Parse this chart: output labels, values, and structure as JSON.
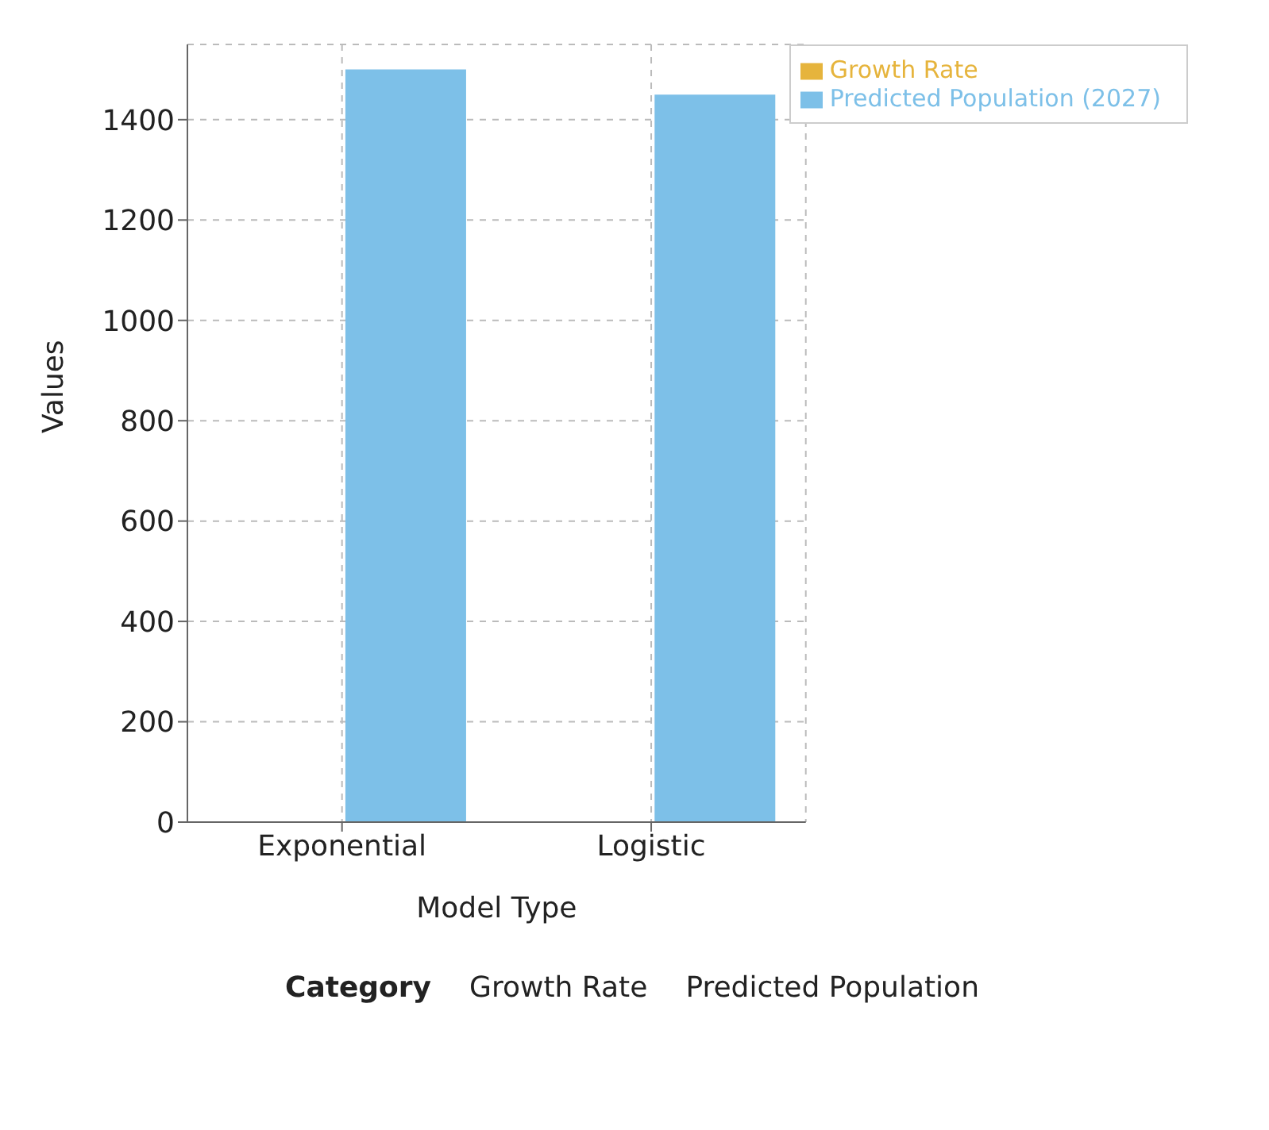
{
  "chart_data": {
    "type": "bar",
    "xlabel": "Model Type",
    "ylabel": "Values",
    "categories": [
      "Exponential",
      "Logistic"
    ],
    "series": [
      {
        "name": "Growth Rate",
        "color": "#e6b43c",
        "values": [
          0,
          0
        ]
      },
      {
        "name": "Predicted Population (2027)",
        "color": "#7dc0e8",
        "values": [
          1500,
          1450
        ]
      }
    ],
    "ylim": [
      0,
      1550
    ],
    "yticks": [
      0,
      200,
      400,
      600,
      800,
      1000,
      1200,
      1400
    ],
    "grid": true,
    "legend": "top right",
    "annotations": [
      "Category",
      "Growth Rate",
      "Predicted Population"
    ]
  }
}
